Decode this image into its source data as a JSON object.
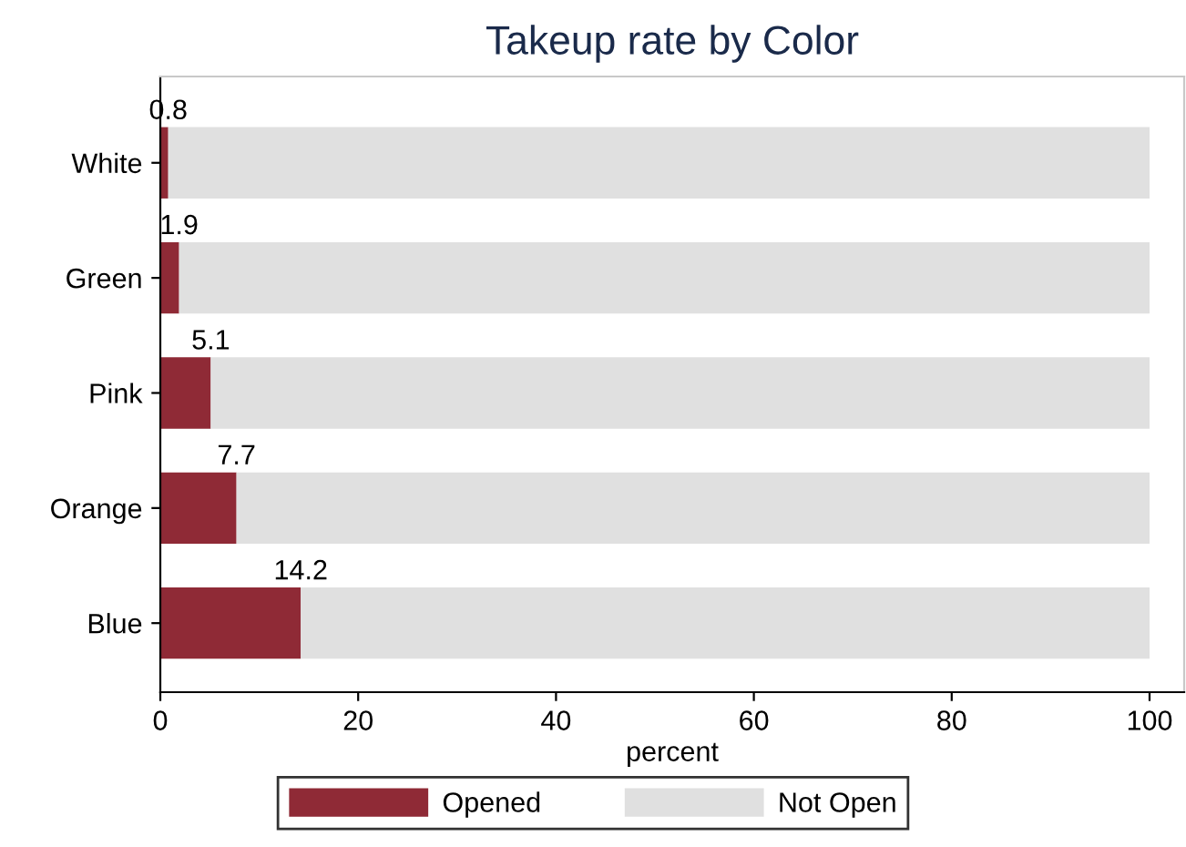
{
  "chart_data": {
    "type": "bar",
    "orientation": "horizontal",
    "stacked": true,
    "title": "Takeup rate by Color",
    "xlabel": "percent",
    "categories": [
      "White",
      "Green",
      "Pink",
      "Orange",
      "Blue"
    ],
    "series": [
      {
        "name": "Opened",
        "color": "#8f2a36",
        "values": [
          0.8,
          1.9,
          5.1,
          7.7,
          14.2
        ],
        "value_labels": [
          "0.8",
          "1.9",
          "5.1",
          "7.7",
          "14.2"
        ]
      },
      {
        "name": "Not Open",
        "color": "#e0e0e0",
        "values": [
          99.2,
          98.1,
          94.9,
          92.3,
          85.8
        ]
      }
    ],
    "xlim": [
      0,
      103.5
    ],
    "xticks": [
      0,
      20,
      40,
      60,
      80,
      100
    ],
    "grid": false,
    "legend": "bottom"
  }
}
